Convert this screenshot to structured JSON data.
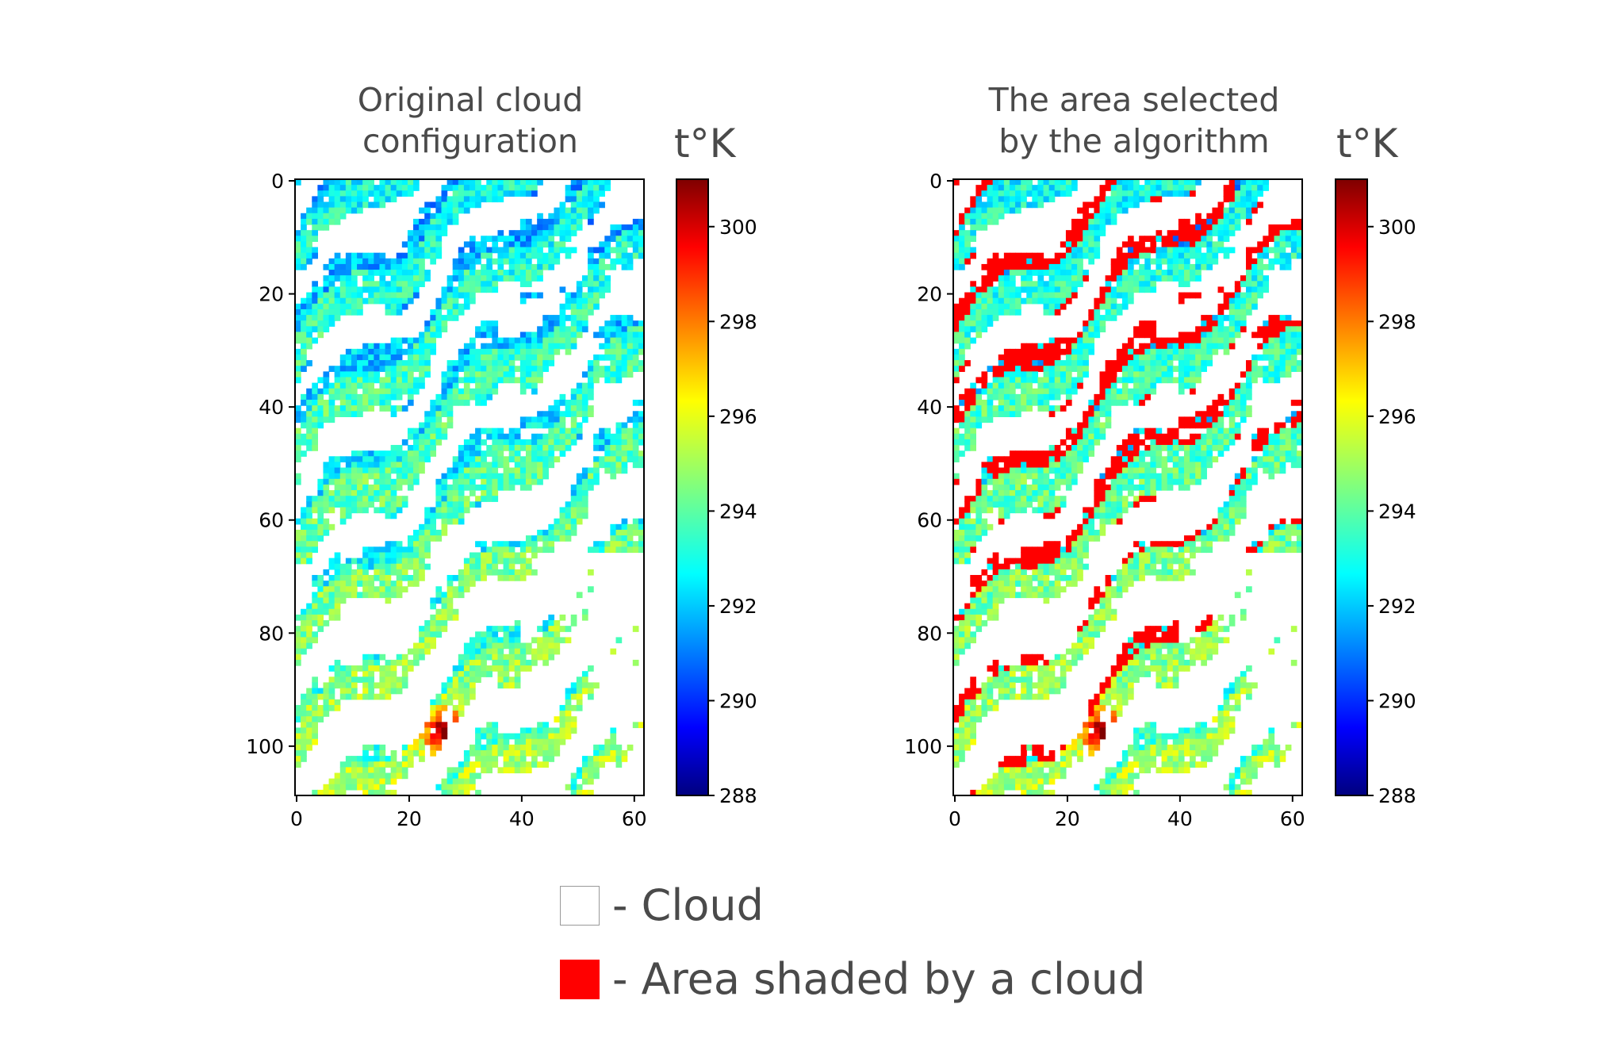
{
  "chart_data": [
    {
      "type": "heatmap",
      "title": "Original cloud configuration",
      "title_lines": [
        "Original cloud",
        "configuration"
      ],
      "x_ticks": [
        0,
        20,
        40,
        60
      ],
      "y_ticks": [
        0,
        20,
        40,
        60,
        80,
        100
      ],
      "xlim": [
        0,
        62
      ],
      "ylim": [
        109,
        0
      ],
      "colorbar": {
        "label": "t°K",
        "ticks": [
          288,
          290,
          292,
          294,
          296,
          298,
          300
        ],
        "range": [
          288,
          301
        ],
        "colormap": "jet"
      },
      "white_value_meaning": "Cloud"
    },
    {
      "type": "heatmap",
      "title": "The area selected by the algorithm",
      "title_lines": [
        "The area selected",
        "by the algorithm"
      ],
      "x_ticks": [
        0,
        20,
        40,
        60
      ],
      "y_ticks": [
        0,
        20,
        40,
        60,
        80,
        100
      ],
      "xlim": [
        0,
        62
      ],
      "ylim": [
        109,
        0
      ],
      "colorbar": {
        "label": "t°K",
        "ticks": [
          288,
          290,
          292,
          294,
          296,
          298,
          300
        ],
        "range": [
          288,
          301
        ],
        "colormap": "jet"
      },
      "overlay_color": "#ff0000"
    }
  ],
  "legend": {
    "cloud_label": "- Cloud",
    "shaded_label": "- Area shaded by a cloud"
  },
  "colors": {
    "shade": "#ff0000",
    "text": "#4a4a4a"
  }
}
